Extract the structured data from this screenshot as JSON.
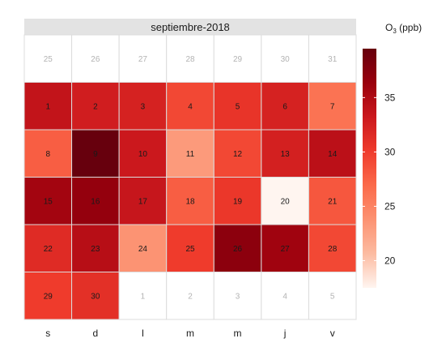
{
  "chart_data": {
    "type": "heatmap",
    "title": "septiembre-2018",
    "weekday_labels": [
      "s",
      "d",
      "l",
      "m",
      "m",
      "j",
      "v"
    ],
    "legend": {
      "title_main": "O",
      "title_sub": "3",
      "title_unit": " (ppb)",
      "ticks": [
        20,
        25,
        30,
        35
      ],
      "range": [
        17.5,
        39.5
      ],
      "colors": [
        "#fff5f0",
        "#fcbba1",
        "#fc9272",
        "#fb6a4a",
        "#ef3b2c",
        "#cb181d",
        "#99000d",
        "#67000d"
      ]
    },
    "rows": [
      [
        {
          "day": "25",
          "in_month": false
        },
        {
          "day": "26",
          "in_month": false
        },
        {
          "day": "27",
          "in_month": false
        },
        {
          "day": "28",
          "in_month": false
        },
        {
          "day": "29",
          "in_month": false
        },
        {
          "day": "30",
          "in_month": false
        },
        {
          "day": "31",
          "in_month": false
        }
      ],
      [
        {
          "day": "1",
          "in_month": true,
          "value": 33.8
        },
        {
          "day": "2",
          "in_month": true,
          "value": 32.8
        },
        {
          "day": "3",
          "in_month": true,
          "value": 32.3
        },
        {
          "day": "4",
          "in_month": true,
          "value": 29.2
        },
        {
          "day": "5",
          "in_month": true,
          "value": 30.7
        },
        {
          "day": "6",
          "in_month": true,
          "value": 32.3
        },
        {
          "day": "7",
          "in_month": true,
          "value": 26.2
        }
      ],
      [
        {
          "day": "8",
          "in_month": true,
          "value": 27.7
        },
        {
          "day": "9",
          "in_month": true,
          "value": 39.5
        },
        {
          "day": "10",
          "in_month": true,
          "value": 33.2
        },
        {
          "day": "11",
          "in_month": true,
          "value": 23.2
        },
        {
          "day": "12",
          "in_month": true,
          "value": 29.2
        },
        {
          "day": "13",
          "in_month": true,
          "value": 32.5
        },
        {
          "day": "14",
          "in_month": true,
          "value": 34.2
        }
      ],
      [
        {
          "day": "15",
          "in_month": true,
          "value": 35.7
        },
        {
          "day": "16",
          "in_month": true,
          "value": 36.7
        },
        {
          "day": "17",
          "in_month": true,
          "value": 33.5
        },
        {
          "day": "18",
          "in_month": true,
          "value": 27.7
        },
        {
          "day": "19",
          "in_month": true,
          "value": 30.4
        },
        {
          "day": "20",
          "in_month": true,
          "value": 17.5
        },
        {
          "day": "21",
          "in_month": true,
          "value": 28.2
        }
      ],
      [
        {
          "day": "22",
          "in_month": true,
          "value": 31.5
        },
        {
          "day": "23",
          "in_month": true,
          "value": 34.5
        },
        {
          "day": "24",
          "in_month": true,
          "value": 23.7
        },
        {
          "day": "25",
          "in_month": true,
          "value": 30.1
        },
        {
          "day": "26",
          "in_month": true,
          "value": 37.2
        },
        {
          "day": "27",
          "in_month": true,
          "value": 35.9
        },
        {
          "day": "28",
          "in_month": true,
          "value": 29.2
        }
      ],
      [
        {
          "day": "29",
          "in_month": true,
          "value": 30.1
        },
        {
          "day": "30",
          "in_month": true,
          "value": 31.1
        },
        {
          "day": "1",
          "in_month": false
        },
        {
          "day": "2",
          "in_month": false
        },
        {
          "day": "3",
          "in_month": false
        },
        {
          "day": "4",
          "in_month": false
        },
        {
          "day": "5",
          "in_month": false
        }
      ]
    ]
  }
}
